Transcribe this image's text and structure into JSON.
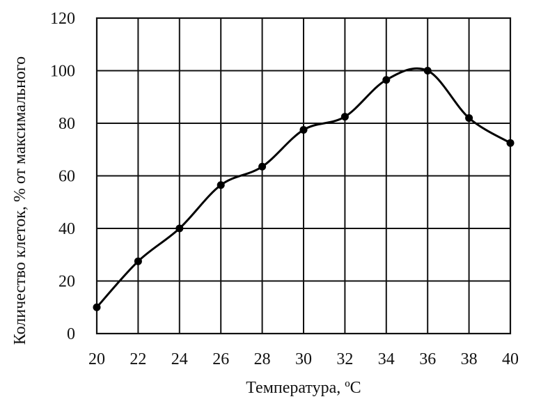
{
  "chart_data": {
    "type": "line",
    "title": "",
    "xlabel": "Температура, ºС",
    "ylabel": "Количество клеток, % от максимального",
    "x": [
      20,
      22,
      24,
      26,
      28,
      30,
      32,
      34,
      36,
      38,
      40
    ],
    "series": [
      {
        "values": [
          10,
          27.5,
          40,
          56.5,
          63.5,
          77.5,
          82.5,
          96.5,
          100,
          82,
          72.5
        ]
      }
    ],
    "xlim": [
      20,
      40
    ],
    "ylim": [
      0,
      120
    ],
    "xticks": [
      20,
      22,
      24,
      26,
      28,
      30,
      32,
      34,
      36,
      38,
      40
    ],
    "yticks": [
      0,
      20,
      40,
      60,
      80,
      100,
      120
    ],
    "grid": true,
    "line_color": "#000000"
  }
}
